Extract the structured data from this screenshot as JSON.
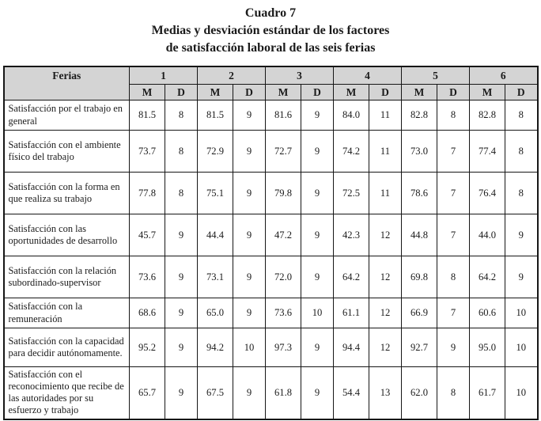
{
  "title": {
    "line1": "Cuadro 7",
    "line2": "Medias y desviación estándar de los factores",
    "line3": "de satisfacción laboral de las seis ferias"
  },
  "table": {
    "corner_header": "Ferias",
    "group_headers": [
      "1",
      "2",
      "3",
      "4",
      "5",
      "6"
    ],
    "sub_headers": [
      "M",
      "D"
    ],
    "rows": [
      {
        "label": "Satisfacción por el trabajo en general",
        "values": [
          "81.5",
          "8",
          "81.5",
          "9",
          "81.6",
          "9",
          "84.0",
          "11",
          "82.8",
          "8",
          "82.8",
          "8"
        ]
      },
      {
        "label": "Satisfacción con el ambiente físico del trabajo",
        "values": [
          "73.7",
          "8",
          "72.9",
          "9",
          "72.7",
          "9",
          "74.2",
          "11",
          "73.0",
          "7",
          "77.4",
          "8"
        ]
      },
      {
        "label": "Satisfacción con la forma en que realiza su trabajo",
        "values": [
          "77.8",
          "8",
          "75.1",
          "9",
          "79.8",
          "9",
          "72.5",
          "11",
          "78.6",
          "7",
          "76.4",
          "8"
        ]
      },
      {
        "label": "Satisfacción con las oportunidades de desarrollo",
        "values": [
          "45.7",
          "9",
          "44.4",
          "9",
          "47.2",
          "9",
          "42.3",
          "12",
          "44.8",
          "7",
          "44.0",
          "9"
        ]
      },
      {
        "label": "Satisfacción con la relación subordinado-supervisor",
        "values": [
          "73.6",
          "9",
          "73.1",
          "9",
          "72.0",
          "9",
          "64.2",
          "12",
          "69.8",
          "8",
          "64.2",
          "9"
        ]
      },
      {
        "label": "Satisfacción con la remuneración",
        "values": [
          "68.6",
          "9",
          "65.0",
          "9",
          "73.6",
          "10",
          "61.1",
          "12",
          "66.9",
          "7",
          "60.6",
          "10"
        ]
      },
      {
        "label": "Satisfacción con la capacidad para decidir autónomamente.",
        "values": [
          "95.2",
          "9",
          "94.2",
          "10",
          "97.3",
          "9",
          "94.4",
          "12",
          "92.7",
          "9",
          "95.0",
          "10"
        ]
      },
      {
        "label": "Satisfacción con el reconocimiento que recibe de las autoridades por su esfuerzo y trabajo",
        "values": [
          "65.7",
          "9",
          "67.5",
          "9",
          "61.8",
          "9",
          "54.4",
          "13",
          "62.0",
          "8",
          "61.7",
          "10"
        ]
      }
    ]
  },
  "colors": {
    "header_bg": "#d4d4d4",
    "border": "#161616",
    "text": "#1b1b1b",
    "page_bg": "#ffffff"
  }
}
